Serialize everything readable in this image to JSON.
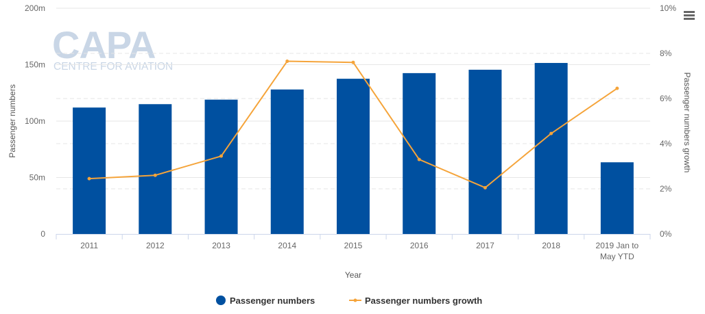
{
  "watermark": {
    "brand": "CAPA",
    "tagline": "CENTRE FOR AVIATION"
  },
  "menu": {
    "icon": "hamburger-menu-icon"
  },
  "chart_data": {
    "type": "bar",
    "categories": [
      "2011",
      "2012",
      "2013",
      "2014",
      "2015",
      "2016",
      "2017",
      "2018",
      "2019 Jan to May YTD"
    ],
    "category_lines": [
      [
        "2011"
      ],
      [
        "2012"
      ],
      [
        "2013"
      ],
      [
        "2014"
      ],
      [
        "2015"
      ],
      [
        "2016"
      ],
      [
        "2017"
      ],
      [
        "2018"
      ],
      [
        "2019 Jan to",
        "May YTD"
      ]
    ],
    "xlabel": "Year",
    "ylabel": "Passenger numbers",
    "y2label": "Passenger numbers growth",
    "ylim": [
      0,
      200
    ],
    "y2lim": [
      0,
      10
    ],
    "yticks": [
      "0",
      "50m",
      "100m",
      "150m",
      "200m"
    ],
    "y2ticks": [
      "0%",
      "2%",
      "4%",
      "6%",
      "8%",
      "10%"
    ],
    "grid": true,
    "legend_position": "bottom",
    "series": [
      {
        "name": "Passenger numbers",
        "type": "bar",
        "axis": "left",
        "color": "#0050a0",
        "values": [
          112,
          115,
          119,
          128,
          137.5,
          142.5,
          145.5,
          151.5,
          63.5
        ]
      },
      {
        "name": "Passenger numbers growth",
        "type": "line",
        "axis": "right",
        "color": "#f5a43a",
        "values": [
          2.45,
          2.6,
          3.45,
          7.65,
          7.6,
          3.3,
          2.05,
          4.45,
          6.45
        ]
      }
    ]
  }
}
